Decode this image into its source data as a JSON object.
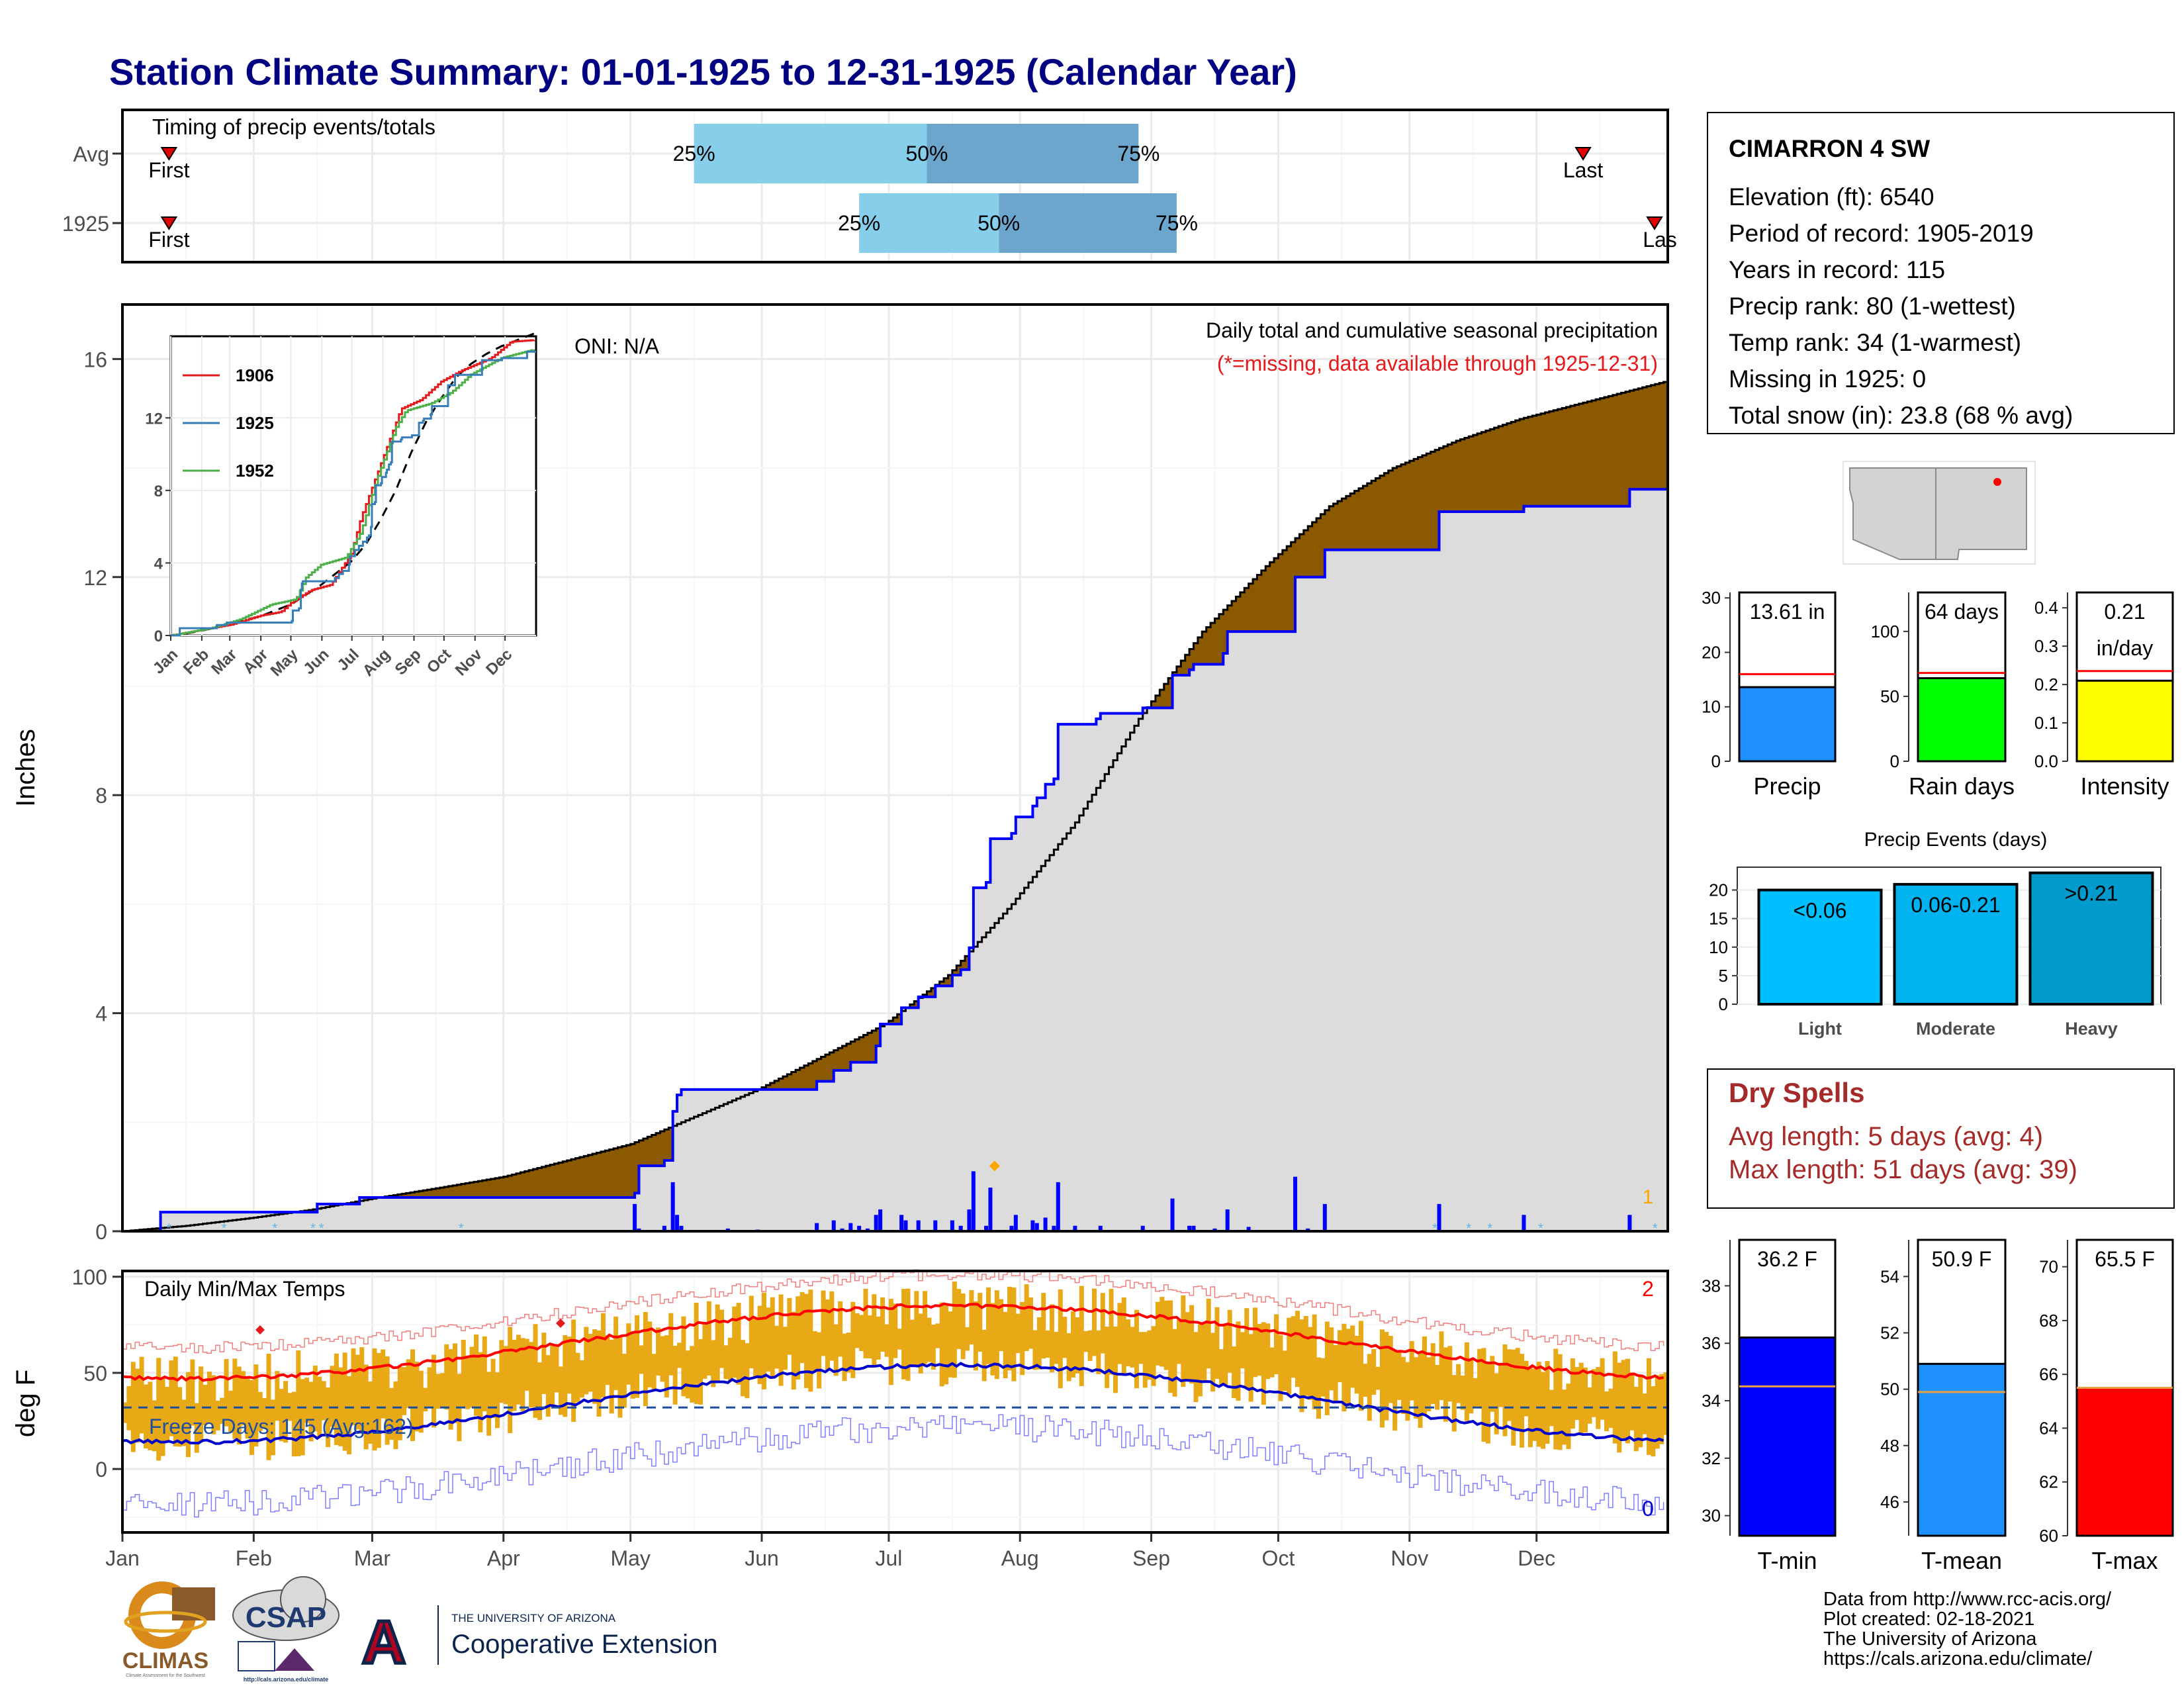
{
  "title": "Station Climate Summary: 01-01-1925 to 12-31-1925 (Calendar Year)",
  "colors": {
    "title": "#000080",
    "brown": "#8B5A00",
    "gray_fill": "#DCDCDC",
    "blue": "#0000FF",
    "red": "#E41A1C",
    "orange": "#F0B020",
    "light_bar": "#87CEEB",
    "mid_bar": "#6CA6CD",
    "dry_red": "#A52A2A"
  },
  "months": [
    "Jan",
    "Feb",
    "Mar",
    "Apr",
    "May",
    "Jun",
    "Jul",
    "Aug",
    "Sep",
    "Oct",
    "Nov",
    "Dec"
  ],
  "month_days": [
    0,
    31,
    59,
    90,
    120,
    151,
    181,
    212,
    243,
    273,
    304,
    334
  ],
  "timing": {
    "title": "Timing of precip events/totals",
    "rows": [
      {
        "label": "Avg",
        "first_day": 11,
        "first_label": "First",
        "last_day": 345,
        "last_label": "Last",
        "p25": 135,
        "p50": 190,
        "p75": 240,
        "p25_label": "25%",
        "p50_label": "50%",
        "p75_label": "75%"
      },
      {
        "label": "1925",
        "first_day": 11,
        "first_label": "First",
        "last_day": 365,
        "last_label": "Las",
        "p25": 174,
        "p50": 207,
        "p75": 249,
        "p25_label": "25%",
        "p50_label": "50%",
        "p75_label": "75%"
      }
    ]
  },
  "precip_panel": {
    "ylabel": "Inches",
    "yticks": [
      0,
      4,
      8,
      12,
      16
    ],
    "ylim": [
      0,
      17
    ],
    "oni": "ONI: N/A",
    "subtitle": "Daily total and cumulative seasonal precipitation",
    "missing_note": "(*=missing, data available through 1925-12-31)",
    "missing_count": "1",
    "avg_cumulative": [
      [
        0,
        0
      ],
      [
        15,
        0.1
      ],
      [
        31,
        0.25
      ],
      [
        45,
        0.4
      ],
      [
        59,
        0.6
      ],
      [
        75,
        0.8
      ],
      [
        90,
        1.0
      ],
      [
        105,
        1.3
      ],
      [
        120,
        1.6
      ],
      [
        135,
        2.1
      ],
      [
        150,
        2.6
      ],
      [
        165,
        3.2
      ],
      [
        180,
        3.8
      ],
      [
        195,
        4.7
      ],
      [
        210,
        6.0
      ],
      [
        225,
        7.5
      ],
      [
        240,
        9.4
      ],
      [
        255,
        11.0
      ],
      [
        270,
        12.2
      ],
      [
        285,
        13.3
      ],
      [
        300,
        14.0
      ],
      [
        315,
        14.5
      ],
      [
        330,
        14.9
      ],
      [
        345,
        15.2
      ],
      [
        365,
        15.6
      ]
    ],
    "cumulative_1925": [
      [
        0,
        0
      ],
      [
        8,
        0
      ],
      [
        9,
        0.35
      ],
      [
        45,
        0.35
      ],
      [
        46,
        0.5
      ],
      [
        55,
        0.5
      ],
      [
        56,
        0.62
      ],
      [
        120,
        0.62
      ],
      [
        121,
        0.7
      ],
      [
        122,
        1.2
      ],
      [
        128,
        1.3
      ],
      [
        130,
        2.2
      ],
      [
        131,
        2.5
      ],
      [
        132,
        2.6
      ],
      [
        163,
        2.6
      ],
      [
        164,
        2.75
      ],
      [
        168,
        2.95
      ],
      [
        172,
        3.1
      ],
      [
        178,
        3.4
      ],
      [
        179,
        3.8
      ],
      [
        183,
        3.8
      ],
      [
        184,
        4.1
      ],
      [
        188,
        4.3
      ],
      [
        192,
        4.5
      ],
      [
        196,
        4.7
      ],
      [
        198,
        4.8
      ],
      [
        200,
        5.2
      ],
      [
        201,
        6.3
      ],
      [
        204,
        6.4
      ],
      [
        205,
        7.2
      ],
      [
        210,
        7.3
      ],
      [
        211,
        7.6
      ],
      [
        215,
        7.8
      ],
      [
        216,
        7.95
      ],
      [
        218,
        8.2
      ],
      [
        220,
        8.3
      ],
      [
        221,
        9.3
      ],
      [
        230,
        9.4
      ],
      [
        231,
        9.5
      ],
      [
        240,
        9.5
      ],
      [
        241,
        9.6
      ],
      [
        247,
        9.6
      ],
      [
        248,
        10.2
      ],
      [
        252,
        10.3
      ],
      [
        253,
        10.4
      ],
      [
        260,
        10.6
      ],
      [
        261,
        11.0
      ],
      [
        276,
        11.0
      ],
      [
        277,
        12.0
      ],
      [
        283,
        12.0
      ],
      [
        284,
        12.5
      ],
      [
        310,
        12.5
      ],
      [
        311,
        13.2
      ],
      [
        330,
        13.2
      ],
      [
        331,
        13.3
      ],
      [
        355,
        13.3
      ],
      [
        356,
        13.61
      ],
      [
        365,
        13.61
      ]
    ],
    "daily_1925": [
      [
        121,
        0.5
      ],
      [
        122,
        0.05
      ],
      [
        128,
        0.1
      ],
      [
        130,
        0.9
      ],
      [
        131,
        0.3
      ],
      [
        132,
        0.1
      ],
      [
        143,
        0.05
      ],
      [
        150,
        0.03
      ],
      [
        164,
        0.15
      ],
      [
        168,
        0.2
      ],
      [
        170,
        0.05
      ],
      [
        172,
        0.15
      ],
      [
        174,
        0.1
      ],
      [
        176,
        0.05
      ],
      [
        178,
        0.3
      ],
      [
        179,
        0.4
      ],
      [
        184,
        0.3
      ],
      [
        185,
        0.2
      ],
      [
        188,
        0.2
      ],
      [
        192,
        0.2
      ],
      [
        196,
        0.2
      ],
      [
        198,
        0.1
      ],
      [
        200,
        0.4
      ],
      [
        201,
        1.1
      ],
      [
        204,
        0.1
      ],
      [
        205,
        0.8
      ],
      [
        210,
        0.1
      ],
      [
        211,
        0.3
      ],
      [
        215,
        0.2
      ],
      [
        216,
        0.15
      ],
      [
        218,
        0.25
      ],
      [
        220,
        0.1
      ],
      [
        221,
        0.9
      ],
      [
        225,
        0.1
      ],
      [
        231,
        0.1
      ],
      [
        241,
        0.1
      ],
      [
        248,
        0.6
      ],
      [
        252,
        0.1
      ],
      [
        253,
        0.1
      ],
      [
        258,
        0.05
      ],
      [
        261,
        0.4
      ],
      [
        266,
        0.08
      ],
      [
        277,
        1.0
      ],
      [
        280,
        0.05
      ],
      [
        284,
        0.5
      ],
      [
        311,
        0.5
      ],
      [
        331,
        0.3
      ],
      [
        356,
        0.3
      ]
    ],
    "snow_days": [
      11,
      24,
      36,
      45,
      47,
      80,
      310,
      318,
      323,
      335,
      362
    ],
    "max_marker": {
      "day": 206,
      "value": 1.1
    }
  },
  "inset": {
    "yticks": [
      0,
      4,
      8,
      12
    ],
    "ylim": [
      0,
      16.5
    ],
    "legend": [
      {
        "name": "1906",
        "color": "#E41A1C"
      },
      {
        "name": "1925",
        "color": "#377EB8"
      },
      {
        "name": "1952",
        "color": "#4DAF4A"
      }
    ],
    "series_1906": [
      [
        0,
        0
      ],
      [
        30,
        0.3
      ],
      [
        60,
        0.6
      ],
      [
        90,
        1.1
      ],
      [
        110,
        1.3
      ],
      [
        120,
        1.8
      ],
      [
        140,
        2.5
      ],
      [
        160,
        2.8
      ],
      [
        180,
        4.5
      ],
      [
        190,
        6.5
      ],
      [
        200,
        8.0
      ],
      [
        210,
        9.5
      ],
      [
        220,
        11.0
      ],
      [
        230,
        12.5
      ],
      [
        250,
        13.0
      ],
      [
        270,
        14.0
      ],
      [
        290,
        14.6
      ],
      [
        320,
        15.3
      ],
      [
        340,
        16.2
      ],
      [
        365,
        16.3
      ]
    ],
    "series_1952": [
      [
        0,
        0
      ],
      [
        40,
        0.4
      ],
      [
        70,
        0.9
      ],
      [
        100,
        1.7
      ],
      [
        125,
        2.0
      ],
      [
        135,
        3.2
      ],
      [
        150,
        3.9
      ],
      [
        175,
        4.3
      ],
      [
        190,
        5.7
      ],
      [
        205,
        8.5
      ],
      [
        215,
        10.0
      ],
      [
        225,
        11.5
      ],
      [
        235,
        12.4
      ],
      [
        260,
        12.8
      ],
      [
        280,
        13.4
      ],
      [
        300,
        14.4
      ],
      [
        330,
        15.3
      ],
      [
        365,
        15.8
      ]
    ]
  },
  "temp_panel": {
    "ylabel": "deg F",
    "yticks": [
      0,
      50,
      100
    ],
    "ylim": [
      -33,
      103
    ],
    "title": "Daily Min/Max Temps",
    "freeze_text": "Freeze Days: 145 (Avg:162)",
    "freeze_line": 32,
    "count_top": "2",
    "count_bottom": "0"
  },
  "station": {
    "name": "CIMARRON 4 SW",
    "lines": [
      "Elevation (ft): 6540",
      "Period of record: 1905-2019",
      "Years in record: 115",
      "Precip rank: 80 (1-wettest)",
      "Temp rank: 34 (1-warmest)",
      "Missing in 1925: 0",
      "Total snow (in): 23.8 (68 % avg)"
    ]
  },
  "small_bars": [
    {
      "label": "Precip",
      "value_text": "13.61 in",
      "value": 13.61,
      "avg": 16.0,
      "ymax": 31,
      "yticks": [
        0,
        10,
        20,
        30
      ],
      "color": "#1E90FF"
    },
    {
      "label": "Rain days",
      "value_text": "64 days",
      "value": 64,
      "avg": 68,
      "ymax": 130,
      "yticks": [
        0,
        50,
        100
      ],
      "color": "#00FF00"
    },
    {
      "label": "Intensity",
      "value_text": "0.21",
      "value_text2": "in/day",
      "value": 0.21,
      "avg": 0.235,
      "ymax": 0.44,
      "yticks": [
        "0.0",
        "0.1",
        "0.2",
        "0.3",
        "0.4"
      ],
      "color": "#FFFF00"
    }
  ],
  "events": {
    "title": "Precip Events (days)",
    "yticks": [
      0,
      5,
      10,
      15,
      20
    ],
    "ymax": 24,
    "bars": [
      {
        "label": "Light",
        "text": "<0.06",
        "value": 20,
        "color": "#00BFFF"
      },
      {
        "label": "Moderate",
        "text": "0.06-0.21",
        "value": 21,
        "color": "#00B2EE"
      },
      {
        "label": "Heavy",
        "text": ">0.21",
        "value": 23,
        "color": "#009ACD"
      }
    ]
  },
  "dry": {
    "title": "Dry Spells",
    "lines": [
      "Avg length: 5 days (avg: 4)",
      "Max length: 51 days (avg: 39)"
    ]
  },
  "temp_bars": [
    {
      "label": "T-min",
      "value_text": "36.2 F",
      "value": 36.2,
      "avg": 34.5,
      "ymin": 29.3,
      "ymax": 39.6,
      "yticks": [
        30,
        32,
        34,
        36,
        38
      ],
      "color": "#0000FF"
    },
    {
      "label": "T-mean",
      "value_text": "50.9 F",
      "value": 50.9,
      "avg": 49.9,
      "ymin": 44.8,
      "ymax": 55.3,
      "yticks": [
        46,
        48,
        50,
        52,
        54
      ],
      "color": "#1E90FF"
    },
    {
      "label": "T-max",
      "value_text": "65.5 F",
      "value": 65.5,
      "avg": 65.5,
      "ymin": 60,
      "ymax": 71,
      "yticks": [
        60,
        62,
        64,
        66,
        68,
        70
      ],
      "color": "#FF0000"
    }
  ],
  "footer": {
    "lines": [
      "Data from http://www.rcc-acis.org/",
      "Plot created: 02-18-2021",
      "The University of Arizona",
      "https://cals.arizona.edu/climate/"
    ],
    "logo_climas": "CLIMAS",
    "logo_climas_sub": "Climate Assessment for the Southwest",
    "logo_csap": "CSAP",
    "logo_csap_url": "http://cals.arizona.edu/climate",
    "ua_top": "THE UNIVERSITY OF ARIZONA",
    "ua_bottom": "Cooperative Extension",
    "ua_letter": "A"
  }
}
